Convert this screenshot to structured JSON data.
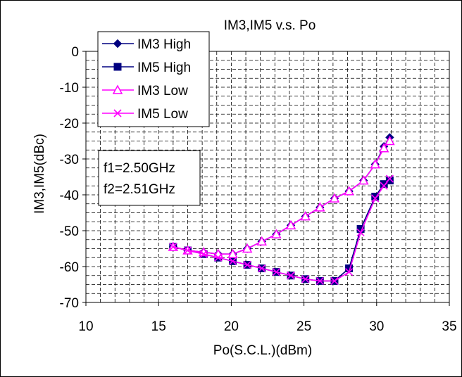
{
  "chart_data": {
    "type": "line",
    "title": "IM3,IM5  v.s.  Po",
    "xlabel": "Po(S.C.L.)(dBm)",
    "ylabel": "IM3,IM5(dBc)",
    "xlim": [
      10,
      35
    ],
    "ylim": [
      -70,
      0
    ],
    "xticks": [
      10,
      15,
      20,
      25,
      30,
      35
    ],
    "yticks": [
      0,
      -10,
      -20,
      -30,
      -40,
      -50,
      -60,
      -70
    ],
    "grid": true,
    "legend_position": "top-left",
    "annotation": [
      "f1=2.50GHz",
      "f2=2.51GHz"
    ],
    "series": [
      {
        "name": "IM3 High",
        "marker": "diamond",
        "color": "#000080",
        "x": [
          16,
          17,
          18.1,
          19.1,
          20.1,
          21.1,
          22.1,
          23.1,
          24.1,
          25.1,
          26.1,
          27.1,
          28.1,
          29.1,
          29.9,
          30.5,
          30.9
        ],
        "y": [
          -54.5,
          -55.5,
          -56,
          -56.5,
          -56.5,
          -55,
          -53,
          -51,
          -48.5,
          -46,
          -43.5,
          -41,
          -39,
          -36,
          -31.5,
          -26.5,
          -24
        ]
      },
      {
        "name": "IM5 High",
        "marker": "square",
        "color": "#000080",
        "x": [
          16,
          17,
          18.1,
          19.1,
          20.1,
          21.1,
          22.1,
          23.1,
          24.1,
          25.1,
          26.1,
          27.1,
          28.1,
          28.9,
          29.9,
          30.5,
          30.9
        ],
        "y": [
          -54.5,
          -55.5,
          -56.5,
          -57.5,
          -58.5,
          -59.5,
          -60.5,
          -61.5,
          -62.5,
          -63.5,
          -64,
          -64,
          -60.5,
          -49.5,
          -40.5,
          -37,
          -36
        ]
      },
      {
        "name": "IM3 Low",
        "marker": "triangle",
        "color": "#ff00ff",
        "x": [
          16,
          17,
          18.1,
          19.1,
          20.1,
          21.1,
          22.1,
          23.1,
          24.1,
          25.1,
          26.1,
          27.1,
          28.1,
          29.1,
          29.9,
          30.5,
          30.9
        ],
        "y": [
          -54.5,
          -55.5,
          -56,
          -56.5,
          -56.5,
          -55,
          -53,
          -51,
          -48.5,
          -46,
          -43.5,
          -41,
          -39,
          -36,
          -31.5,
          -27,
          -25
        ]
      },
      {
        "name": "IM5 Low",
        "marker": "x",
        "color": "#ff00ff",
        "x": [
          16,
          17,
          18.1,
          19.1,
          20.1,
          21.1,
          22.1,
          23.1,
          24.1,
          25.1,
          26.1,
          27.1,
          28.1,
          28.9,
          29.9,
          30.5,
          30.9
        ],
        "y": [
          -54.5,
          -55.5,
          -56.5,
          -57.5,
          -58.5,
          -59.5,
          -60.5,
          -61.5,
          -62.5,
          -63.5,
          -64,
          -64,
          -61.5,
          -50.5,
          -41,
          -37.5,
          -35.5
        ]
      }
    ]
  }
}
